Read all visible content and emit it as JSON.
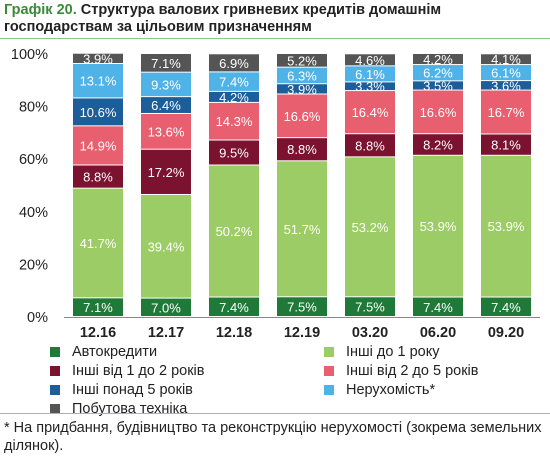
{
  "header": {
    "number": "Графік 20.",
    "title": "Структура валових гривневих кредитів домашнім господарствам за цільовим призначенням"
  },
  "footnote": "* На придбання, будівництво та реконструкцію нерухомості (зокрема земельних ділянок).",
  "chart_data": {
    "type": "bar",
    "stacked": true,
    "categories": [
      "12.16",
      "12.17",
      "12.18",
      "12.19",
      "03.20",
      "06.20",
      "09.20"
    ],
    "ylim": [
      0,
      100
    ],
    "yticks": [
      "0%",
      "20%",
      "40%",
      "60%",
      "80%",
      "100%"
    ],
    "grid": false,
    "legend_position": "bottom",
    "series": [
      {
        "name": "Автокредити",
        "color": "#1f7a3a",
        "label_color": "#ffffff",
        "values": [
          7.1,
          7.0,
          7.4,
          7.5,
          7.5,
          7.4,
          7.4
        ],
        "labels": [
          "7.1%",
          "7.0%",
          "7.4%",
          "7.5%",
          "7.5%",
          "7.4%",
          "7.4%"
        ]
      },
      {
        "name": "Інші до 1 року",
        "color": "#9ccc65",
        "label_color": "#ffffff",
        "values": [
          41.7,
          39.4,
          50.2,
          51.7,
          53.2,
          53.9,
          53.9
        ],
        "labels": [
          "41.7%",
          "39.4%",
          "50.2%",
          "51.7%",
          "53.2%",
          "53.9%",
          "53.9%"
        ]
      },
      {
        "name": "Інші від 1 до 2 років",
        "color": "#7b1230",
        "label_color": "#ffffff",
        "values": [
          8.8,
          17.2,
          9.5,
          8.8,
          8.8,
          8.2,
          8.1
        ],
        "labels": [
          "8.8%",
          "17.2%",
          "9.5%",
          "8.8%",
          "8.8%",
          "8.2%",
          "8.1%"
        ]
      },
      {
        "name": "Інші від 2 до 5 років",
        "color": "#e8606f",
        "label_color": "#ffffff",
        "values": [
          14.9,
          13.6,
          14.3,
          16.6,
          16.4,
          16.6,
          16.7
        ],
        "labels": [
          "14.9%",
          "13.6%",
          "14.3%",
          "16.6%",
          "16.4%",
          "16.6%",
          "16.7%"
        ]
      },
      {
        "name": "Інші понад 5 років",
        "color": "#1b5e9a",
        "label_color": "#ffffff",
        "values": [
          10.6,
          6.4,
          4.2,
          3.9,
          3.3,
          3.5,
          3.6
        ],
        "labels": [
          "10.6%",
          "6.4%",
          "4.2%",
          "3.9%",
          "3.3%",
          "3.5%",
          "3.6%"
        ]
      },
      {
        "name": "Нерухомість*",
        "color": "#4fb3e8",
        "label_color": "#ffffff",
        "values": [
          13.1,
          9.3,
          7.4,
          6.3,
          6.1,
          6.2,
          6.1
        ],
        "labels": [
          "13.1%",
          "9.3%",
          "7.4%",
          "6.3%",
          "6.1%",
          "6.2%",
          "6.1%"
        ]
      },
      {
        "name": "Побутова техніка",
        "color": "#555555",
        "label_color": "#ffffff",
        "values": [
          3.9,
          7.1,
          6.9,
          5.2,
          4.6,
          4.2,
          4.1
        ],
        "labels": [
          "3.9%",
          "7.1%",
          "6.9%",
          "5.2%",
          "4.6%",
          "4.2%",
          "4.1%"
        ]
      }
    ]
  }
}
